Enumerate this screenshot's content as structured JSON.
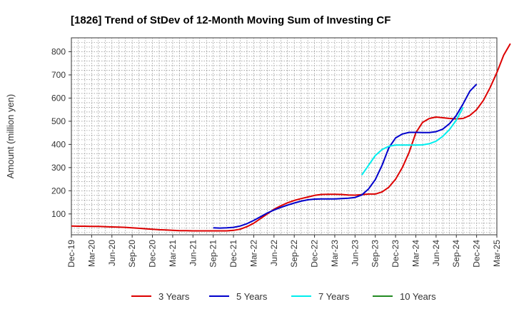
{
  "chart_data": {
    "type": "line",
    "title": "[1826]  Trend of StDev of 12-Month Moving Sum of Investing CF",
    "xlabel": "",
    "ylabel": "Amount (million yen)",
    "x_ticks": [
      "Dec-19",
      "Mar-20",
      "Jun-20",
      "Sep-20",
      "Dec-20",
      "Mar-21",
      "Jun-21",
      "Sep-21",
      "Dec-21",
      "Mar-22",
      "Jun-22",
      "Sep-22",
      "Dec-22",
      "Mar-23",
      "Jun-23",
      "Sep-23",
      "Dec-23",
      "Mar-24",
      "Jun-24",
      "Sep-24",
      "Dec-24",
      "Mar-25"
    ],
    "y_ticks": [
      100,
      200,
      300,
      400,
      500,
      600,
      700,
      800
    ],
    "ylim": [
      10,
      860
    ],
    "grid": true,
    "legend_position": "bottom",
    "series": [
      {
        "name": "3 Years",
        "color": "#dd0000",
        "start_month": "Dec-19",
        "values": [
          48,
          47,
          47,
          46,
          46,
          45,
          44,
          43,
          42,
          40,
          38,
          36,
          34,
          32,
          31,
          29,
          28,
          28,
          27,
          27,
          27,
          27,
          27,
          27,
          29,
          34,
          45,
          60,
          80,
          100,
          120,
          135,
          148,
          158,
          166,
          173,
          180,
          184,
          185,
          185,
          184,
          182,
          181,
          183,
          186,
          186,
          195,
          215,
          250,
          300,
          365,
          450,
          495,
          512,
          518,
          515,
          512,
          510,
          512,
          525,
          550,
          590,
          645,
          710,
          785,
          835
        ]
      },
      {
        "name": "5 Years",
        "color": "#0000cc",
        "start_month": "Sep-21",
        "values": [
          40,
          39,
          40,
          42,
          48,
          58,
          72,
          88,
          104,
          117,
          128,
          138,
          147,
          155,
          161,
          164,
          165,
          165,
          165,
          166,
          168,
          171,
          182,
          208,
          248,
          310,
          385,
          428,
          445,
          452,
          452,
          451,
          451,
          455,
          466,
          490,
          525,
          575,
          630,
          660
        ]
      },
      {
        "name": "7 Years",
        "color": "#00eeee",
        "start_month": "Jul-23",
        "values": [
          268,
          310,
          352,
          378,
          392,
          397,
          397,
          397,
          397,
          398,
          403,
          414,
          435,
          465,
          505,
          560
        ]
      },
      {
        "name": "10 Years",
        "color": "#228B22",
        "start_month": "",
        "values": []
      }
    ]
  }
}
